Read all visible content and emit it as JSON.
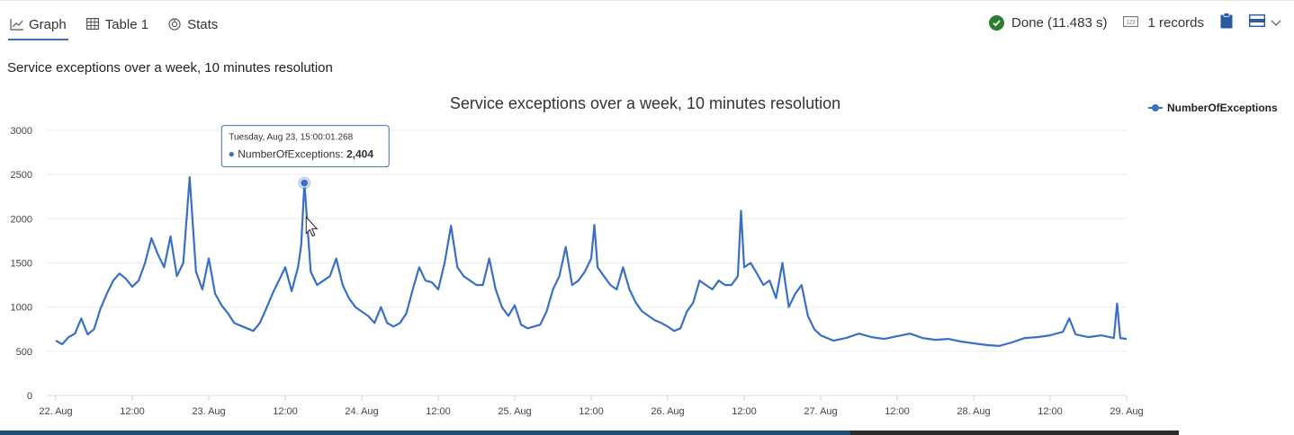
{
  "tabs": [
    {
      "label": "Graph",
      "icon": "line-chart-icon",
      "active": true
    },
    {
      "label": "Table 1",
      "icon": "table-icon",
      "active": false
    },
    {
      "label": "Stats",
      "icon": "stats-icon",
      "active": false
    }
  ],
  "status": {
    "done_text": "Done (11.483 s)",
    "records_text": "1 records",
    "done_color": "#2f7d32",
    "accent_color": "#3a6fc6"
  },
  "query_title": "Service exceptions over a week, 10 minutes resolution",
  "chart_data": {
    "type": "line",
    "title": "Service exceptions over a week, 10 minutes resolution",
    "xlabel": "",
    "ylabel": "",
    "ylim": [
      0,
      3000
    ],
    "yticks": [
      0,
      500,
      1000,
      1500,
      2000,
      2500,
      3000
    ],
    "xlim": [
      "2022-08-22T00:00",
      "2022-08-29T00:00"
    ],
    "xticks": [
      "22. Aug",
      "12:00",
      "23. Aug",
      "12:00",
      "24. Aug",
      "12:00",
      "25. Aug",
      "12:00",
      "26. Aug",
      "12:00",
      "27. Aug",
      "12:00",
      "28. Aug",
      "12:00",
      "29. Aug"
    ],
    "grid": true,
    "legend_position": "top-right",
    "series": [
      {
        "name": "NumberOfExceptions",
        "color": "#3a6fc6",
        "points": [
          [
            "2022-08-22T00:00",
            620
          ],
          [
            "2022-08-22T01:00",
            580
          ],
          [
            "2022-08-22T02:00",
            660
          ],
          [
            "2022-08-22T03:00",
            700
          ],
          [
            "2022-08-22T04:00",
            870
          ],
          [
            "2022-08-22T05:00",
            690
          ],
          [
            "2022-08-22T06:00",
            750
          ],
          [
            "2022-08-22T07:00",
            980
          ],
          [
            "2022-08-22T08:00",
            1150
          ],
          [
            "2022-08-22T09:00",
            1300
          ],
          [
            "2022-08-22T10:00",
            1380
          ],
          [
            "2022-08-22T11:00",
            1320
          ],
          [
            "2022-08-22T12:00",
            1230
          ],
          [
            "2022-08-22T13:00",
            1300
          ],
          [
            "2022-08-22T14:00",
            1500
          ],
          [
            "2022-08-22T15:00",
            1780
          ],
          [
            "2022-08-22T16:00",
            1600
          ],
          [
            "2022-08-22T17:00",
            1450
          ],
          [
            "2022-08-22T18:00",
            1800
          ],
          [
            "2022-08-22T19:00",
            1350
          ],
          [
            "2022-08-22T20:00",
            1500
          ],
          [
            "2022-08-22T21:00",
            2470
          ],
          [
            "2022-08-22T22:00",
            1400
          ],
          [
            "2022-08-22T23:00",
            1200
          ],
          [
            "2022-08-23T00:00",
            1550
          ],
          [
            "2022-08-23T01:00",
            1150
          ],
          [
            "2022-08-23T02:00",
            1020
          ],
          [
            "2022-08-23T03:00",
            930
          ],
          [
            "2022-08-23T04:00",
            820
          ],
          [
            "2022-08-23T05:00",
            790
          ],
          [
            "2022-08-23T06:00",
            760
          ],
          [
            "2022-08-23T07:00",
            730
          ],
          [
            "2022-08-23T08:00",
            820
          ],
          [
            "2022-08-23T09:00",
            980
          ],
          [
            "2022-08-23T10:00",
            1150
          ],
          [
            "2022-08-23T11:00",
            1300
          ],
          [
            "2022-08-23T12:00",
            1450
          ],
          [
            "2022-08-23T13:00",
            1180
          ],
          [
            "2022-08-23T14:00",
            1450
          ],
          [
            "2022-08-23T14:30",
            1700
          ],
          [
            "2022-08-23T15:00",
            2404
          ],
          [
            "2022-08-23T16:00",
            1400
          ],
          [
            "2022-08-23T17:00",
            1250
          ],
          [
            "2022-08-23T18:00",
            1300
          ],
          [
            "2022-08-23T19:00",
            1350
          ],
          [
            "2022-08-23T20:00",
            1550
          ],
          [
            "2022-08-23T21:00",
            1250
          ],
          [
            "2022-08-23T22:00",
            1100
          ],
          [
            "2022-08-23T23:00",
            1000
          ],
          [
            "2022-08-24T00:00",
            950
          ],
          [
            "2022-08-24T01:00",
            900
          ],
          [
            "2022-08-24T02:00",
            820
          ],
          [
            "2022-08-24T03:00",
            1000
          ],
          [
            "2022-08-24T04:00",
            820
          ],
          [
            "2022-08-24T05:00",
            780
          ],
          [
            "2022-08-24T06:00",
            820
          ],
          [
            "2022-08-24T07:00",
            930
          ],
          [
            "2022-08-24T08:00",
            1200
          ],
          [
            "2022-08-24T09:00",
            1450
          ],
          [
            "2022-08-24T10:00",
            1300
          ],
          [
            "2022-08-24T11:00",
            1280
          ],
          [
            "2022-08-24T12:00",
            1200
          ],
          [
            "2022-08-24T13:00",
            1500
          ],
          [
            "2022-08-24T14:00",
            1920
          ],
          [
            "2022-08-24T15:00",
            1450
          ],
          [
            "2022-08-24T16:00",
            1350
          ],
          [
            "2022-08-24T17:00",
            1300
          ],
          [
            "2022-08-24T18:00",
            1250
          ],
          [
            "2022-08-24T19:00",
            1250
          ],
          [
            "2022-08-24T20:00",
            1550
          ],
          [
            "2022-08-24T21:00",
            1200
          ],
          [
            "2022-08-24T22:00",
            1000
          ],
          [
            "2022-08-24T23:00",
            900
          ],
          [
            "2022-08-25T00:00",
            1020
          ],
          [
            "2022-08-25T01:00",
            800
          ],
          [
            "2022-08-25T02:00",
            760
          ],
          [
            "2022-08-25T03:00",
            780
          ],
          [
            "2022-08-25T04:00",
            800
          ],
          [
            "2022-08-25T05:00",
            950
          ],
          [
            "2022-08-25T06:00",
            1200
          ],
          [
            "2022-08-25T07:00",
            1350
          ],
          [
            "2022-08-25T08:00",
            1680
          ],
          [
            "2022-08-25T09:00",
            1250
          ],
          [
            "2022-08-25T10:00",
            1300
          ],
          [
            "2022-08-25T11:00",
            1400
          ],
          [
            "2022-08-25T12:00",
            1550
          ],
          [
            "2022-08-25T12:30",
            1930
          ],
          [
            "2022-08-25T13:00",
            1450
          ],
          [
            "2022-08-25T14:00",
            1350
          ],
          [
            "2022-08-25T15:00",
            1250
          ],
          [
            "2022-08-25T16:00",
            1200
          ],
          [
            "2022-08-25T17:00",
            1450
          ],
          [
            "2022-08-25T18:00",
            1200
          ],
          [
            "2022-08-25T19:00",
            1050
          ],
          [
            "2022-08-25T20:00",
            950
          ],
          [
            "2022-08-25T21:00",
            900
          ],
          [
            "2022-08-25T22:00",
            850
          ],
          [
            "2022-08-25T23:00",
            820
          ],
          [
            "2022-08-26T00:00",
            780
          ],
          [
            "2022-08-26T01:00",
            730
          ],
          [
            "2022-08-26T02:00",
            760
          ],
          [
            "2022-08-26T03:00",
            950
          ],
          [
            "2022-08-26T04:00",
            1050
          ],
          [
            "2022-08-26T05:00",
            1300
          ],
          [
            "2022-08-26T06:00",
            1250
          ],
          [
            "2022-08-26T07:00",
            1200
          ],
          [
            "2022-08-26T08:00",
            1300
          ],
          [
            "2022-08-26T09:00",
            1250
          ],
          [
            "2022-08-26T10:00",
            1250
          ],
          [
            "2022-08-26T11:00",
            1350
          ],
          [
            "2022-08-26T11:30",
            2090
          ],
          [
            "2022-08-26T12:00",
            1450
          ],
          [
            "2022-08-26T13:00",
            1500
          ],
          [
            "2022-08-26T14:00",
            1380
          ],
          [
            "2022-08-26T15:00",
            1250
          ],
          [
            "2022-08-26T16:00",
            1300
          ],
          [
            "2022-08-26T17:00",
            1100
          ],
          [
            "2022-08-26T18:00",
            1500
          ],
          [
            "2022-08-26T19:00",
            1000
          ],
          [
            "2022-08-26T20:00",
            1150
          ],
          [
            "2022-08-26T21:00",
            1250
          ],
          [
            "2022-08-26T22:00",
            900
          ],
          [
            "2022-08-26T23:00",
            750
          ],
          [
            "2022-08-27T00:00",
            680
          ],
          [
            "2022-08-27T02:00",
            620
          ],
          [
            "2022-08-27T04:00",
            650
          ],
          [
            "2022-08-27T06:00",
            700
          ],
          [
            "2022-08-27T08:00",
            660
          ],
          [
            "2022-08-27T10:00",
            640
          ],
          [
            "2022-08-27T12:00",
            670
          ],
          [
            "2022-08-27T14:00",
            700
          ],
          [
            "2022-08-27T16:00",
            650
          ],
          [
            "2022-08-27T18:00",
            630
          ],
          [
            "2022-08-27T20:00",
            640
          ],
          [
            "2022-08-27T22:00",
            610
          ],
          [
            "2022-08-28T00:00",
            590
          ],
          [
            "2022-08-28T02:00",
            570
          ],
          [
            "2022-08-28T04:00",
            560
          ],
          [
            "2022-08-28T06:00",
            600
          ],
          [
            "2022-08-28T08:00",
            650
          ],
          [
            "2022-08-28T10:00",
            660
          ],
          [
            "2022-08-28T12:00",
            680
          ],
          [
            "2022-08-28T14:00",
            720
          ],
          [
            "2022-08-28T15:00",
            870
          ],
          [
            "2022-08-28T16:00",
            690
          ],
          [
            "2022-08-28T18:00",
            660
          ],
          [
            "2022-08-28T20:00",
            680
          ],
          [
            "2022-08-28T22:00",
            650
          ],
          [
            "2022-08-28T22:30",
            1040
          ],
          [
            "2022-08-28T23:00",
            650
          ],
          [
            "2022-08-29T00:00",
            640
          ]
        ]
      }
    ],
    "tooltip": {
      "time": "Tuesday, Aug 23, 15:00:01.268",
      "series": "NumberOfExceptions",
      "label": "NumberOfExceptions:",
      "value": "2,404",
      "x": "2022-08-23T15:00",
      "y": 2404
    }
  }
}
